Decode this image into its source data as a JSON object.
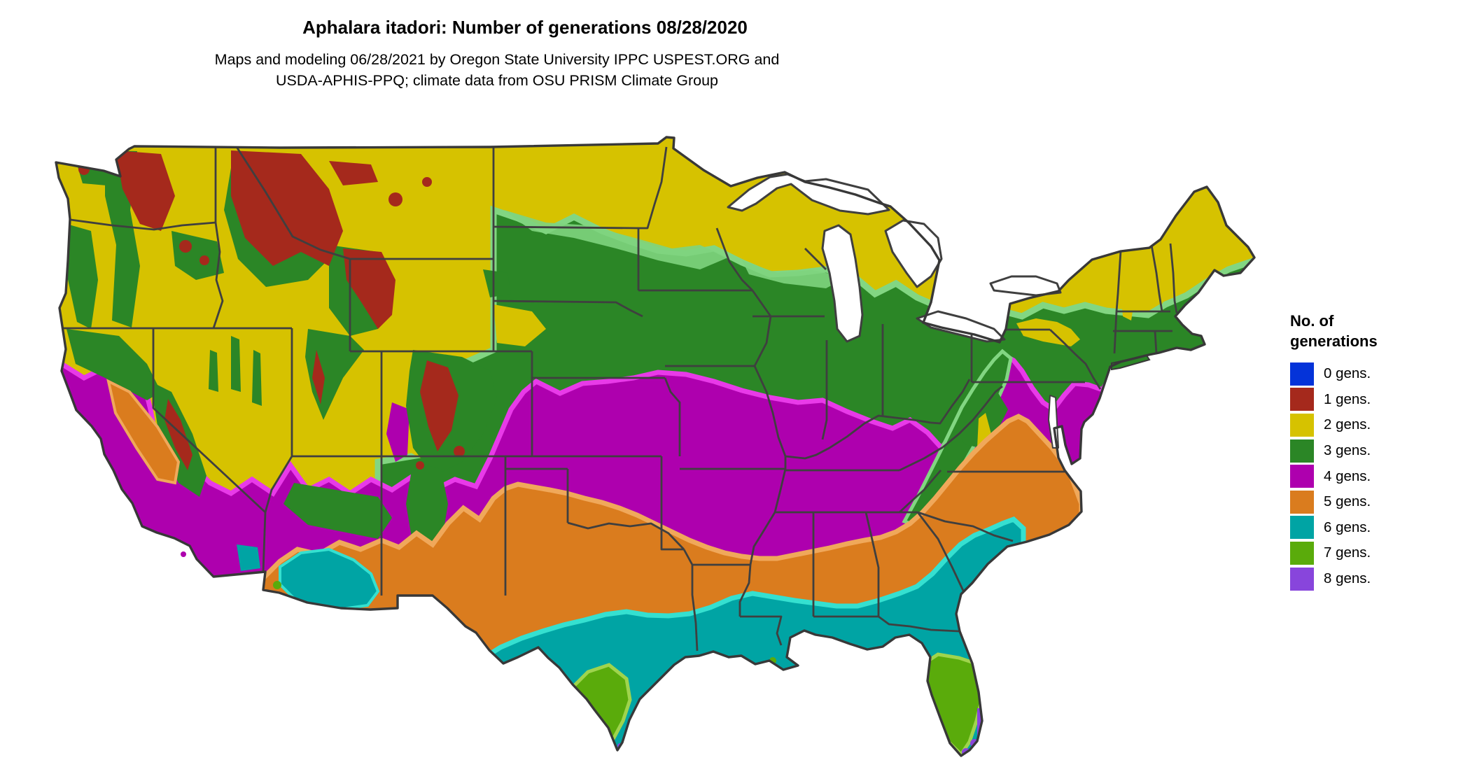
{
  "header": {
    "title": "Aphalara itadori: Number of generations 08/28/2020",
    "subtitle_line1": "Maps and modeling 06/28/2021 by Oregon State University IPPC USPEST.ORG and",
    "subtitle_line2": "USDA-APHIS-PPQ; climate data from OSU PRISM Climate Group"
  },
  "legend": {
    "title_line1": "No. of",
    "title_line2": "generations",
    "items": [
      {
        "label": "0 gens.",
        "color": "#0433D9"
      },
      {
        "label": "1 gens.",
        "color": "#A5291C"
      },
      {
        "label": "2 gens.",
        "color": "#D6C200"
      },
      {
        "label": "3 gens.",
        "color": "#2B8626"
      },
      {
        "label": "4 gens.",
        "color": "#AE00AE"
      },
      {
        "label": "5 gens.",
        "color": "#DA7C1E"
      },
      {
        "label": "6 gens.",
        "color": "#00A4A4"
      },
      {
        "label": "7 gens.",
        "color": "#5AAB0B"
      },
      {
        "label": "8 gens.",
        "color": "#8845DC"
      }
    ]
  },
  "map": {
    "region": "Contiguous United States",
    "palette": {
      "gen0": "#0433D9",
      "gen1": "#A5291C",
      "gen2": "#D6C200",
      "gen3": "#2B8626",
      "gen3_light": "#82D682",
      "gen4": "#AE00AE",
      "gen4_light": "#E83AE8",
      "gen5": "#DA7C1E",
      "gen5_light": "#F0A85A",
      "gen6": "#00A4A4",
      "gen6_light": "#35E0D0",
      "gen7": "#5AAB0B",
      "gen7_light": "#9FD44D",
      "gen8": "#8845DC",
      "state_border": "#3F3F3F",
      "nation_border": "#383838",
      "water": "#FFFFFF"
    }
  }
}
